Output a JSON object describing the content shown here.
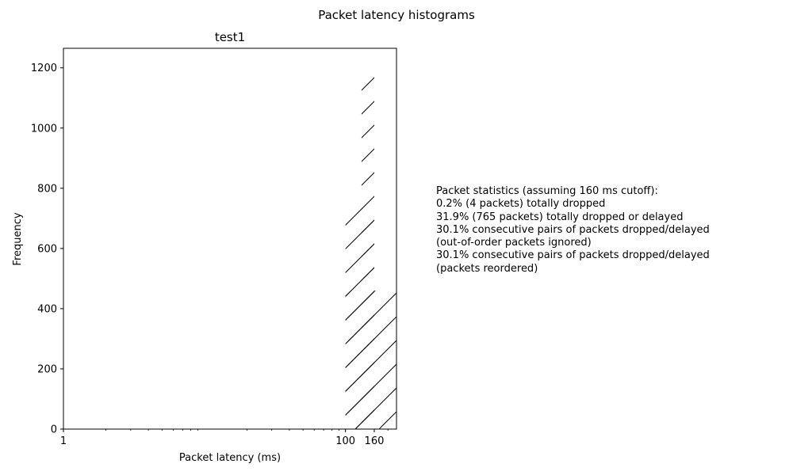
{
  "figure": {
    "suptitle": "Packet latency histograms"
  },
  "chart_data": {
    "type": "bar",
    "title": "test1",
    "xlabel": "Packet latency (ms)",
    "ylabel": "Frequency",
    "xscale": "log",
    "xlim": [
      1,
      230
    ],
    "ylim": [
      0,
      1265
    ],
    "xticks": [
      {
        "value": 1,
        "label": "1"
      },
      {
        "value": 100,
        "label": "100"
      },
      {
        "value": 160,
        "label": "160"
      }
    ],
    "yticks": [
      0,
      200,
      400,
      600,
      800,
      1000,
      1200
    ],
    "bars": [
      {
        "x0": 100,
        "x1": 160,
        "value": 735,
        "hatch": "/",
        "fill": "none",
        "edgecolor": "#000000"
      },
      {
        "x0": 130,
        "x1": 160,
        "value": 1190,
        "hatch": "/",
        "fill": "none",
        "edgecolor": "#000000"
      },
      {
        "x0": 100,
        "x1": 230,
        "value": 460,
        "hatch": "/",
        "fill": "none",
        "edgecolor": "#000000"
      }
    ],
    "grid": false,
    "legend": "none"
  },
  "stats": {
    "lines": [
      "Packet statistics (assuming 160 ms cutoff):",
      "0.2% (4 packets) totally dropped",
      "31.9% (765 packets) totally dropped or delayed",
      "30.1% consecutive pairs of packets dropped/delayed",
      "(out-of-order packets ignored)",
      "30.1% consecutive pairs of packets dropped/delayed",
      "(packets reordered)"
    ]
  }
}
